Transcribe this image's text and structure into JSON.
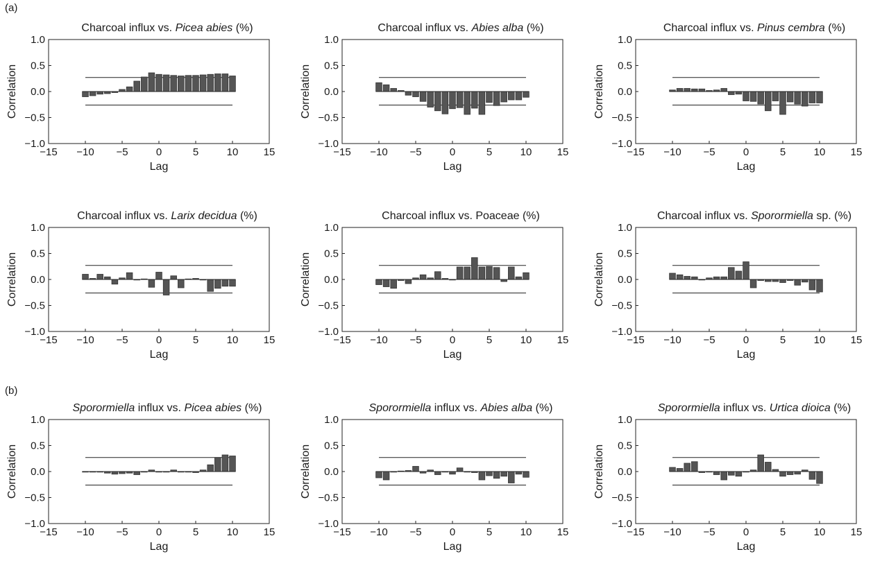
{
  "panel_labels": [
    "(a)",
    "(b)"
  ],
  "axis_defaults": {
    "xlabel": "Lag",
    "ylabel": "Correlation",
    "xlim": [
      -15,
      15
    ],
    "ylim": [
      -1.0,
      1.0
    ],
    "xticks": [
      -15,
      -10,
      -5,
      0,
      5,
      10,
      15
    ],
    "yticks": [
      -1.0,
      -0.5,
      0.0,
      0.5,
      1.0
    ],
    "xtick_labels": [
      "−15",
      "−10",
      "−5",
      "0",
      "5",
      "10",
      "15"
    ],
    "ytick_labels": [
      "−1.0",
      "−0.5",
      "0.0",
      "0.5",
      "1.0"
    ],
    "bar_color": "#555555"
  },
  "chart_data": [
    {
      "type": "bar",
      "title_parts": [
        {
          "t": "Charcoal influx vs. ",
          "i": false
        },
        {
          "t": "Picea abies",
          "i": true
        },
        {
          "t": " (%)",
          "i": false
        }
      ],
      "x": [
        -10,
        -9,
        -8,
        -7,
        -6,
        -5,
        -4,
        -3,
        -2,
        -1,
        0,
        1,
        2,
        3,
        4,
        5,
        6,
        7,
        8,
        9,
        10
      ],
      "values": [
        -0.1,
        -0.08,
        -0.05,
        -0.04,
        -0.02,
        0.04,
        0.09,
        0.2,
        0.28,
        0.36,
        0.33,
        0.32,
        0.31,
        0.3,
        0.31,
        0.31,
        0.32,
        0.33,
        0.34,
        0.34,
        0.3
      ],
      "conf_upper": 0.27,
      "conf_lower": -0.26
    },
    {
      "type": "bar",
      "title_parts": [
        {
          "t": "Charcoal influx vs. ",
          "i": false
        },
        {
          "t": "Abies alba",
          "i": true
        },
        {
          "t": " (%)",
          "i": false
        }
      ],
      "x": [
        -10,
        -9,
        -8,
        -7,
        -6,
        -5,
        -4,
        -3,
        -2,
        -1,
        0,
        1,
        2,
        3,
        4,
        5,
        6,
        7,
        8,
        9,
        10
      ],
      "values": [
        0.17,
        0.13,
        0.06,
        0.02,
        -0.07,
        -0.1,
        -0.19,
        -0.3,
        -0.37,
        -0.43,
        -0.33,
        -0.31,
        -0.44,
        -0.32,
        -0.44,
        -0.21,
        -0.27,
        -0.2,
        -0.16,
        -0.16,
        -0.11
      ],
      "conf_upper": 0.27,
      "conf_lower": -0.26
    },
    {
      "type": "bar",
      "title_parts": [
        {
          "t": "Charcoal influx vs. ",
          "i": false
        },
        {
          "t": "Pinus cembra",
          "i": true
        },
        {
          "t": " (%)",
          "i": false
        }
      ],
      "x": [
        -10,
        -9,
        -8,
        -7,
        -6,
        -5,
        -4,
        -3,
        -2,
        -1,
        0,
        1,
        2,
        3,
        4,
        5,
        6,
        7,
        8,
        9,
        10
      ],
      "values": [
        0.03,
        0.06,
        0.06,
        0.05,
        0.05,
        0.02,
        0.03,
        0.06,
        -0.06,
        -0.05,
        -0.18,
        -0.19,
        -0.24,
        -0.37,
        -0.18,
        -0.44,
        -0.2,
        -0.24,
        -0.28,
        -0.22,
        -0.22
      ],
      "conf_upper": 0.27,
      "conf_lower": -0.26
    },
    {
      "type": "bar",
      "title_parts": [
        {
          "t": "Charcoal influx vs. ",
          "i": false
        },
        {
          "t": "Larix decidua",
          "i": true
        },
        {
          "t": " (%)",
          "i": false
        }
      ],
      "x": [
        -10,
        -9,
        -8,
        -7,
        -6,
        -5,
        -4,
        -3,
        -2,
        -1,
        0,
        1,
        2,
        3,
        4,
        5,
        6,
        7,
        8,
        9,
        10
      ],
      "values": [
        0.1,
        0.02,
        0.1,
        0.05,
        -0.09,
        0.03,
        0.13,
        -0.01,
        0.01,
        -0.15,
        0.14,
        -0.3,
        0.07,
        -0.16,
        0.01,
        0.02,
        0.0,
        -0.23,
        -0.17,
        -0.13,
        -0.13
      ],
      "conf_upper": 0.27,
      "conf_lower": -0.26
    },
    {
      "type": "bar",
      "title_parts": [
        {
          "t": "Charcoal influx vs. Poaceae (%)",
          "i": false
        }
      ],
      "x": [
        -10,
        -9,
        -8,
        -7,
        -6,
        -5,
        -4,
        -3,
        -2,
        -1,
        0,
        1,
        2,
        3,
        4,
        5,
        6,
        7,
        8,
        9,
        10
      ],
      "values": [
        -0.1,
        -0.14,
        -0.17,
        -0.02,
        -0.08,
        0.03,
        0.09,
        0.03,
        0.15,
        0.02,
        0.0,
        0.24,
        0.24,
        0.42,
        0.24,
        0.25,
        0.23,
        -0.04,
        0.24,
        0.05,
        0.13
      ],
      "conf_upper": 0.27,
      "conf_lower": -0.26
    },
    {
      "type": "bar",
      "title_parts": [
        {
          "t": "Charcoal influx vs. ",
          "i": false
        },
        {
          "t": "Sporormiella",
          "i": true
        },
        {
          "t": " sp. (%)",
          "i": false
        }
      ],
      "x": [
        -10,
        -9,
        -8,
        -7,
        -6,
        -5,
        -4,
        -3,
        -2,
        -1,
        0,
        1,
        2,
        3,
        4,
        5,
        6,
        7,
        8,
        9,
        10
      ],
      "values": [
        0.12,
        0.09,
        0.06,
        0.05,
        0.0,
        0.03,
        0.05,
        0.05,
        0.23,
        0.16,
        0.34,
        -0.16,
        -0.02,
        -0.04,
        -0.04,
        -0.06,
        -0.02,
        -0.11,
        -0.05,
        -0.2,
        -0.24
      ],
      "conf_upper": 0.27,
      "conf_lower": -0.26
    },
    {
      "type": "bar",
      "title_parts": [
        {
          "t": "Sporormiella",
          "i": true
        },
        {
          "t": " influx vs. ",
          "i": false
        },
        {
          "t": "Picea abies",
          "i": true
        },
        {
          "t": " (%)",
          "i": false
        }
      ],
      "x": [
        -10,
        -9,
        -8,
        -7,
        -6,
        -5,
        -4,
        -3,
        -2,
        -1,
        0,
        1,
        2,
        3,
        4,
        5,
        6,
        7,
        8,
        9,
        10
      ],
      "values": [
        0.0,
        0.0,
        0.0,
        -0.03,
        -0.05,
        -0.04,
        -0.03,
        -0.06,
        0.0,
        0.03,
        0.0,
        0.0,
        0.03,
        0.0,
        0.0,
        -0.02,
        0.03,
        0.13,
        0.27,
        0.32,
        0.3
      ],
      "conf_upper": 0.27,
      "conf_lower": -0.26
    },
    {
      "type": "bar",
      "title_parts": [
        {
          "t": "Sporormiella",
          "i": true
        },
        {
          "t": " influx vs. ",
          "i": false
        },
        {
          "t": "Abies alba",
          "i": true
        },
        {
          "t": " (%)",
          "i": false
        }
      ],
      "x": [
        -10,
        -9,
        -8,
        -7,
        -6,
        -5,
        -4,
        -3,
        -2,
        -1,
        0,
        1,
        2,
        3,
        4,
        5,
        6,
        7,
        8,
        9,
        10
      ],
      "values": [
        -0.12,
        -0.16,
        0.0,
        0.01,
        0.02,
        0.1,
        -0.03,
        0.03,
        -0.06,
        0.0,
        -0.05,
        0.07,
        0.0,
        -0.02,
        -0.16,
        -0.08,
        -0.13,
        -0.09,
        -0.22,
        -0.05,
        -0.11
      ],
      "conf_upper": 0.27,
      "conf_lower": -0.26
    },
    {
      "type": "bar",
      "title_parts": [
        {
          "t": "Sporormiella",
          "i": true
        },
        {
          "t": " influx vs. ",
          "i": false
        },
        {
          "t": "Urtica dioica",
          "i": true
        },
        {
          "t": " (%)",
          "i": false
        }
      ],
      "x": [
        -10,
        -9,
        -8,
        -7,
        -6,
        -5,
        -4,
        -3,
        -2,
        -1,
        0,
        1,
        2,
        3,
        4,
        5,
        6,
        7,
        8,
        9,
        10
      ],
      "values": [
        0.08,
        0.06,
        0.16,
        0.19,
        -0.02,
        0.0,
        -0.06,
        -0.16,
        -0.07,
        -0.09,
        0.0,
        0.03,
        0.32,
        0.18,
        0.04,
        -0.09,
        -0.06,
        -0.05,
        0.03,
        -0.15,
        -0.23
      ],
      "conf_upper": 0.27,
      "conf_lower": -0.26
    }
  ]
}
